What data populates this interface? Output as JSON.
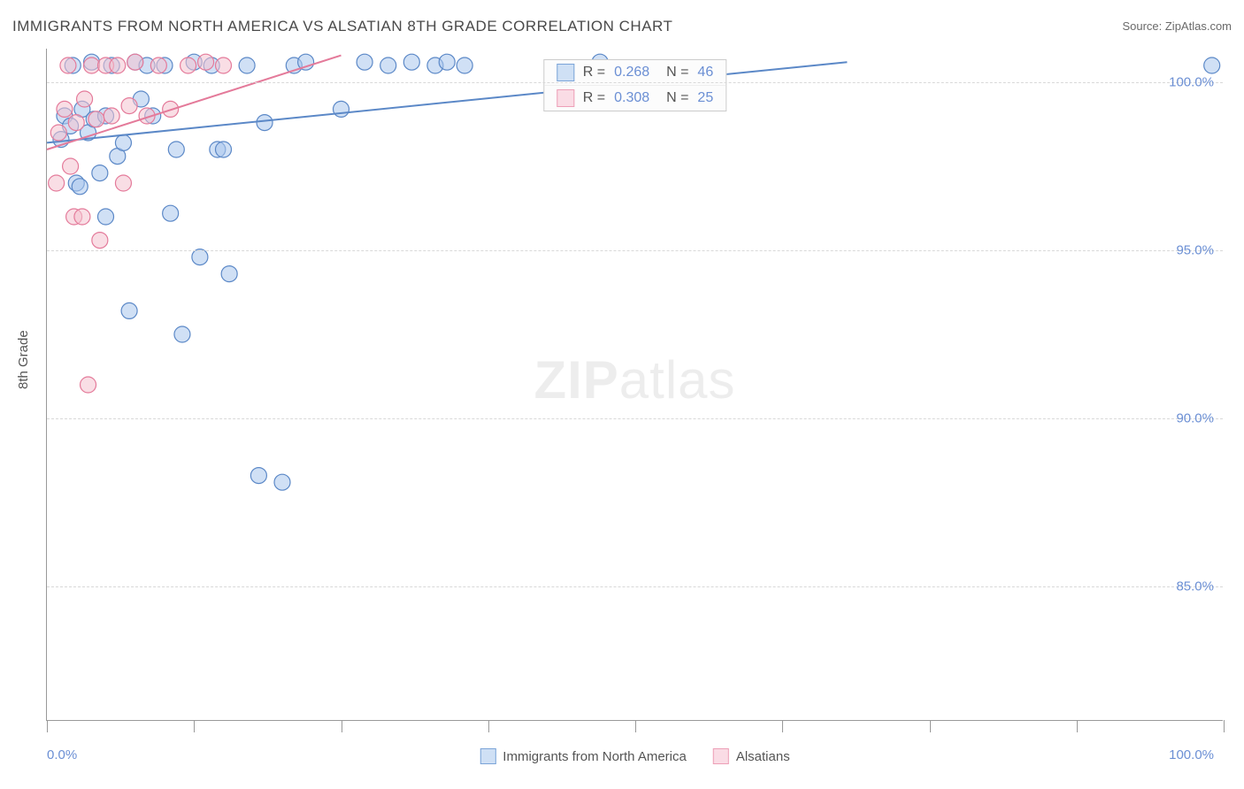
{
  "title": "IMMIGRANTS FROM NORTH AMERICA VS ALSATIAN 8TH GRADE CORRELATION CHART",
  "source": "Source: ZipAtlas.com",
  "y_axis_title": "8th Grade",
  "watermark_bold": "ZIP",
  "watermark_light": "atlas",
  "chart": {
    "type": "scatter",
    "x_min": 0,
    "x_max": 100,
    "y_min": 81,
    "y_max": 101,
    "x_label_min": "0.0%",
    "x_label_max": "100.0%",
    "y_ticks": [
      85,
      90,
      95,
      100
    ],
    "y_tick_labels": [
      "85.0%",
      "90.0%",
      "95.0%",
      "100.0%"
    ],
    "x_grid_ticks": [
      0,
      12.5,
      25,
      37.5,
      50,
      62.5,
      75,
      87.5,
      100
    ],
    "background_color": "#ffffff",
    "grid_color": "#d8d8d8",
    "axis_color": "#999999",
    "label_color": "#6b8fd4",
    "text_color": "#555555",
    "point_radius": 9,
    "point_opacity": 0.55,
    "line_width": 2,
    "series": [
      {
        "name": "Immigrants from North America",
        "fill": "#a9c6ec",
        "stroke": "#5b88c7",
        "swatch_fill": "#cfe0f5",
        "swatch_stroke": "#7ba4d8",
        "R": "0.268",
        "N": "46",
        "trend": {
          "x1": 0,
          "y1": 98.2,
          "x2": 68,
          "y2": 100.6
        },
        "points": [
          [
            1.2,
            98.3
          ],
          [
            1.5,
            99.0
          ],
          [
            2.0,
            98.7
          ],
          [
            2.2,
            100.5
          ],
          [
            2.5,
            97.0
          ],
          [
            2.8,
            96.9
          ],
          [
            3.0,
            99.2
          ],
          [
            3.5,
            98.5
          ],
          [
            3.8,
            100.6
          ],
          [
            4.0,
            98.9
          ],
          [
            4.5,
            97.3
          ],
          [
            5.0,
            99.0
          ],
          [
            5.0,
            96.0
          ],
          [
            5.5,
            100.5
          ],
          [
            6.0,
            97.8
          ],
          [
            6.5,
            98.2
          ],
          [
            7.0,
            93.2
          ],
          [
            7.5,
            100.6
          ],
          [
            8.0,
            99.5
          ],
          [
            8.5,
            100.5
          ],
          [
            9.0,
            99.0
          ],
          [
            10.0,
            100.5
          ],
          [
            10.5,
            96.1
          ],
          [
            11.0,
            98.0
          ],
          [
            11.5,
            92.5
          ],
          [
            12.5,
            100.6
          ],
          [
            13.0,
            94.8
          ],
          [
            14.0,
            100.5
          ],
          [
            14.5,
            98.0
          ],
          [
            15.0,
            98.0
          ],
          [
            15.5,
            94.3
          ],
          [
            17.0,
            100.5
          ],
          [
            18.0,
            88.3
          ],
          [
            18.5,
            98.8
          ],
          [
            20.0,
            88.1
          ],
          [
            21.0,
            100.5
          ],
          [
            22.0,
            100.6
          ],
          [
            25.0,
            99.2
          ],
          [
            27.0,
            100.6
          ],
          [
            29.0,
            100.5
          ],
          [
            31.0,
            100.6
          ],
          [
            33.0,
            100.5
          ],
          [
            34.0,
            100.6
          ],
          [
            35.5,
            100.5
          ],
          [
            47.0,
            100.6
          ],
          [
            99.0,
            100.5
          ]
        ]
      },
      {
        "name": "Alsatians",
        "fill": "#f4c3d0",
        "stroke": "#e47a9a",
        "swatch_fill": "#fadce5",
        "swatch_stroke": "#ed9fb7",
        "R": "0.308",
        "N": "25",
        "trend": {
          "x1": 0,
          "y1": 98.0,
          "x2": 25,
          "y2": 100.8
        },
        "points": [
          [
            0.8,
            97.0
          ],
          [
            1.0,
            98.5
          ],
          [
            1.5,
            99.2
          ],
          [
            1.8,
            100.5
          ],
          [
            2.0,
            97.5
          ],
          [
            2.3,
            96.0
          ],
          [
            2.5,
            98.8
          ],
          [
            3.0,
            96.0
          ],
          [
            3.2,
            99.5
          ],
          [
            3.5,
            91.0
          ],
          [
            3.8,
            100.5
          ],
          [
            4.2,
            98.9
          ],
          [
            4.5,
            95.3
          ],
          [
            5.0,
            100.5
          ],
          [
            5.5,
            99.0
          ],
          [
            6.0,
            100.5
          ],
          [
            6.5,
            97.0
          ],
          [
            7.0,
            99.3
          ],
          [
            7.5,
            100.6
          ],
          [
            8.5,
            99.0
          ],
          [
            9.5,
            100.5
          ],
          [
            10.5,
            99.2
          ],
          [
            12.0,
            100.5
          ],
          [
            13.5,
            100.6
          ],
          [
            15.0,
            100.5
          ]
        ]
      }
    ]
  },
  "legend": [
    {
      "label": "Immigrants from North America"
    },
    {
      "label": "Alsatians"
    }
  ]
}
